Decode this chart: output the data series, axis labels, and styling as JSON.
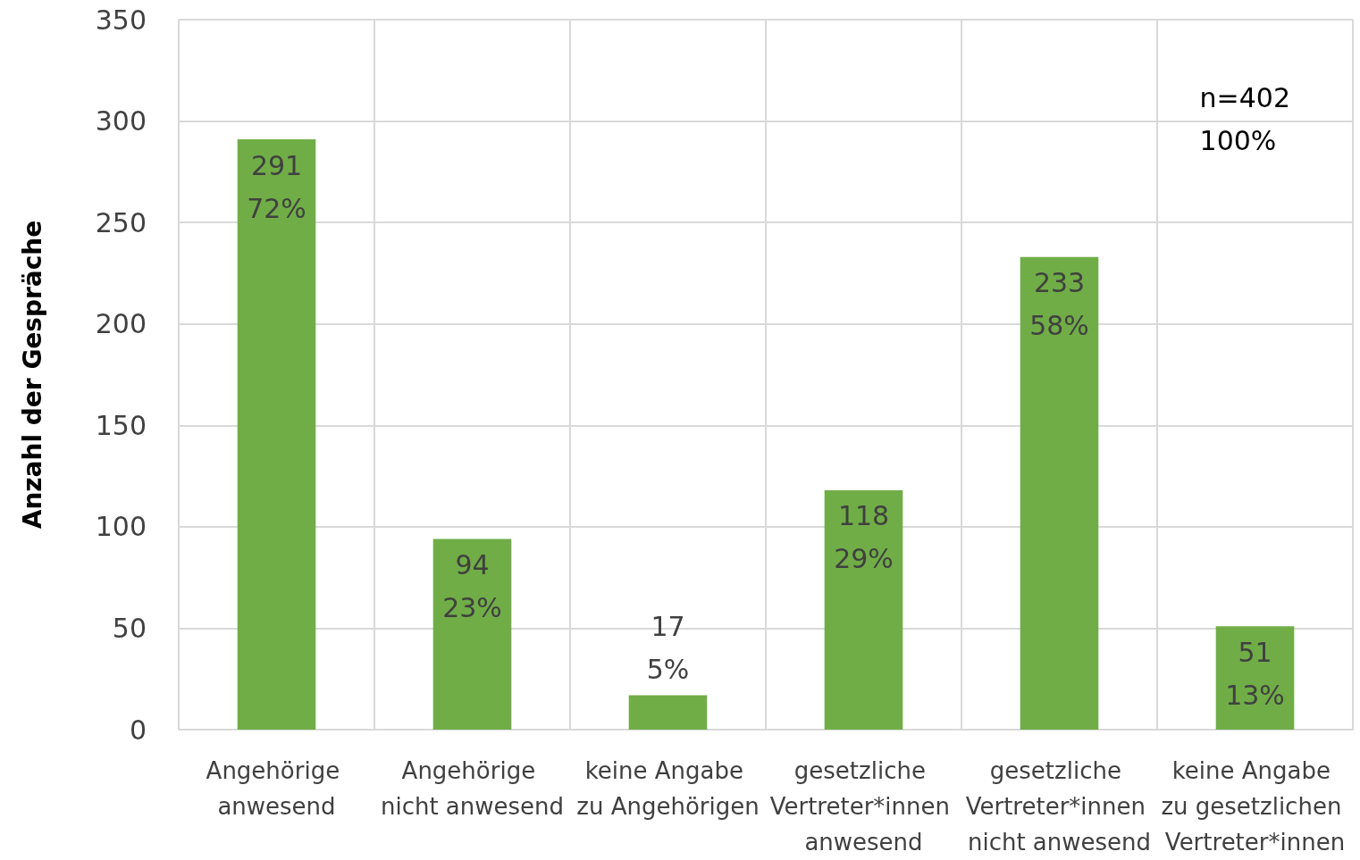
{
  "chart_data": {
    "type": "bar",
    "ylabel": "Anzahl der Gespräche",
    "categories": [
      "Angehörige anwesend",
      "Angehörige nicht anwesend",
      "keine Angabe zu Angehörigen",
      "gesetzliche Vertreter*innen anwesend",
      "gesetzliche Vertreter*innen nicht anwesend",
      "keine Angabe zu gesetzlichen Vertreter*innen"
    ],
    "values": [
      291,
      94,
      17,
      118,
      233,
      51
    ],
    "value_labels": [
      "291\n72%",
      "94\n23%",
      "17\n5%",
      "118\n29%",
      "233\n58%",
      "51\n13%"
    ],
    "color": "#70ad47",
    "ylim": [
      0,
      350
    ],
    "yticks": [
      0,
      50,
      100,
      150,
      200,
      250,
      300,
      350
    ],
    "grid": true,
    "annotations": [
      "n=402\n100%"
    ]
  }
}
